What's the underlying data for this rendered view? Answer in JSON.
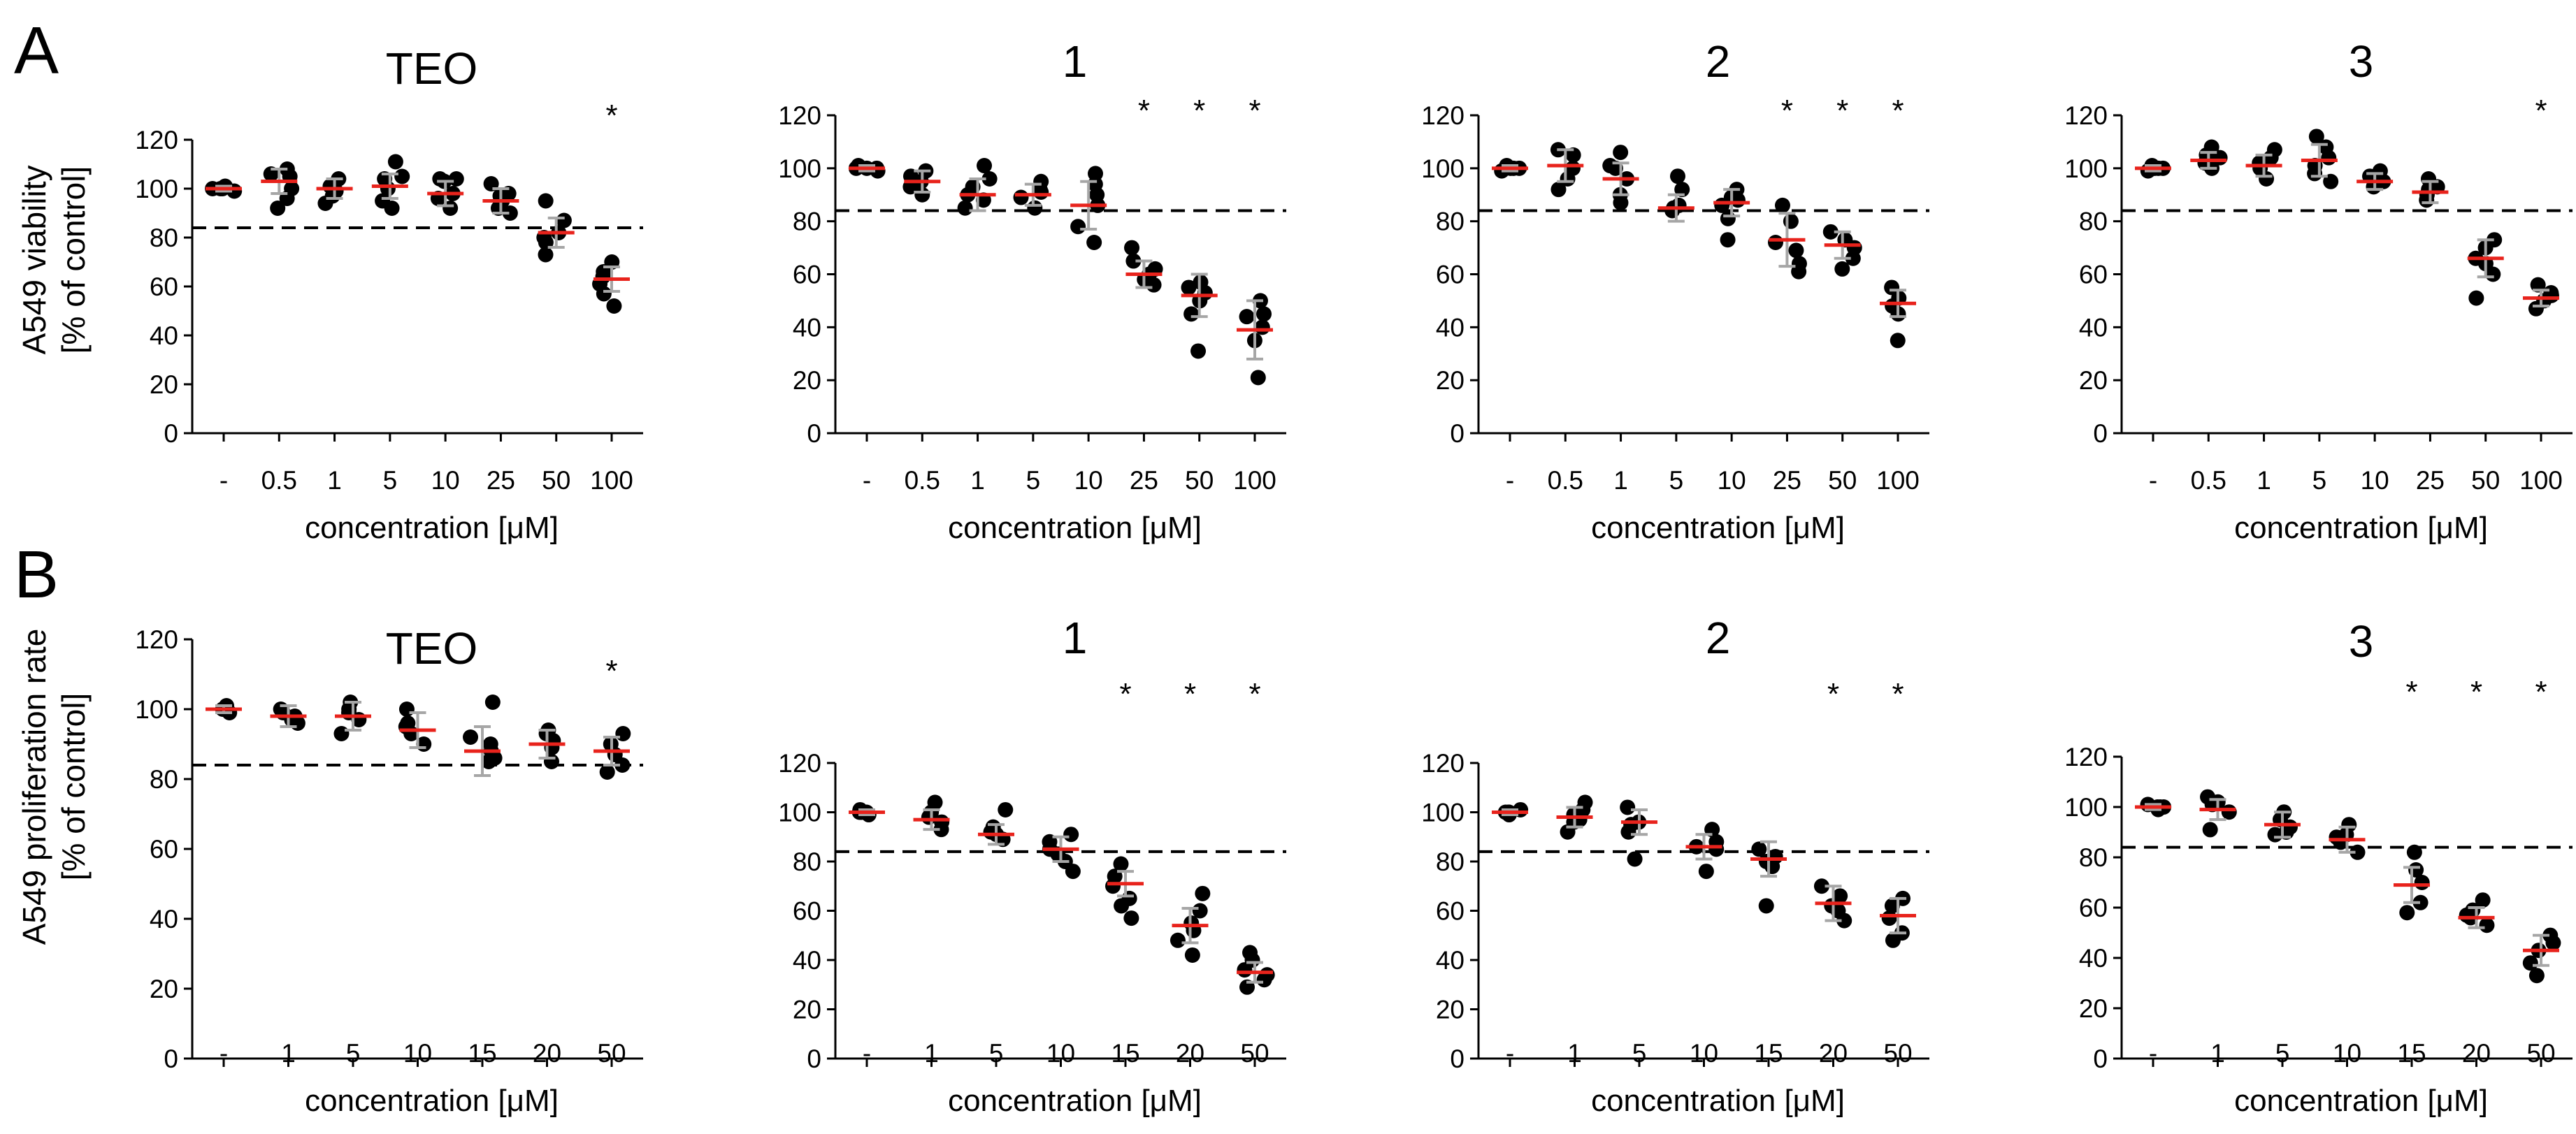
{
  "panel_labels": [
    "A",
    "B"
  ],
  "row_ylabels": [
    [
      "A549 viability",
      "[% of control]"
    ],
    [
      "A549 proliferation rate",
      "[% of control]"
    ]
  ],
  "xlabel": "concentration [μM]",
  "chart_data": [
    {
      "type": "scatter",
      "title": "TEO",
      "categories": [
        "-",
        "0.5",
        "1",
        "5",
        "10",
        "25",
        "50",
        "100"
      ],
      "means": [
        100,
        103,
        100,
        101,
        98,
        95,
        82,
        63
      ],
      "sd": [
        1,
        5,
        4,
        5,
        5,
        5,
        6,
        5
      ],
      "points": [
        [
          99,
          100,
          101,
          100,
          100
        ],
        [
          108,
          106,
          100,
          96,
          92,
          105
        ],
        [
          99,
          104,
          97,
          94,
          101
        ],
        [
          111,
          104,
          100,
          95,
          92,
          105
        ],
        [
          104,
          103,
          96,
          92,
          98,
          104
        ],
        [
          102,
          98,
          95,
          92,
          90,
          97
        ],
        [
          95,
          87,
          80,
          78,
          73,
          82
        ],
        [
          70,
          66,
          61,
          57,
          52,
          64
        ]
      ],
      "significant": [
        false,
        false,
        false,
        false,
        false,
        false,
        false,
        true
      ],
      "threshold": 84,
      "ylim": [
        0,
        120
      ],
      "yticks": [
        0,
        20,
        40,
        60,
        80,
        100,
        120
      ],
      "xlabel": "concentration [μM]"
    },
    {
      "type": "scatter",
      "title": "1",
      "categories": [
        "-",
        "0.5",
        "1",
        "5",
        "10",
        "25",
        "50",
        "100"
      ],
      "means": [
        100,
        95,
        90,
        90,
        86,
        60,
        52,
        39
      ],
      "sd": [
        1,
        4,
        6,
        4,
        9,
        5,
        8,
        11
      ],
      "points": [
        [
          99,
          100,
          101,
          100,
          100
        ],
        [
          99,
          97,
          93,
          90,
          95
        ],
        [
          101,
          96,
          90,
          85,
          88,
          93
        ],
        [
          95,
          92,
          89,
          85,
          91
        ],
        [
          98,
          94,
          86,
          78,
          72,
          90
        ],
        [
          70,
          65,
          60,
          58,
          56,
          62
        ],
        [
          57,
          55,
          50,
          45,
          31,
          53
        ],
        [
          50,
          45,
          40,
          35,
          21,
          44
        ]
      ],
      "significant": [
        false,
        false,
        false,
        false,
        false,
        true,
        true,
        true
      ],
      "threshold": 84,
      "ylim": [
        0,
        120
      ],
      "yticks": [
        0,
        20,
        40,
        60,
        80,
        100,
        120
      ],
      "xlabel": "concentration [μM]"
    },
    {
      "type": "scatter",
      "title": "2",
      "categories": [
        "-",
        "0.5",
        "1",
        "5",
        "10",
        "25",
        "50",
        "100"
      ],
      "means": [
        100,
        101,
        96,
        85,
        87,
        73,
        71,
        49
      ],
      "sd": [
        1,
        6,
        6,
        5,
        5,
        10,
        5,
        5
      ],
      "points": [
        [
          99,
          100,
          101,
          100,
          100
        ],
        [
          107,
          105,
          100,
          96,
          92
        ],
        [
          106,
          100,
          96,
          90,
          87,
          101
        ],
        [
          97,
          92,
          85,
          84,
          86
        ],
        [
          92,
          89,
          86,
          81,
          73,
          88
        ],
        [
          86,
          80,
          72,
          64,
          61,
          69
        ],
        [
          76,
          73,
          70,
          66,
          62
        ],
        [
          55,
          51,
          48,
          45,
          35
        ]
      ],
      "significant": [
        false,
        false,
        false,
        false,
        false,
        true,
        true,
        true
      ],
      "threshold": 84,
      "ylim": [
        0,
        120
      ],
      "yticks": [
        0,
        20,
        40,
        60,
        80,
        100,
        120
      ],
      "xlabel": "concentration [μM]"
    },
    {
      "type": "scatter",
      "title": "3",
      "categories": [
        "-",
        "0.5",
        "1",
        "5",
        "10",
        "25",
        "50",
        "100"
      ],
      "means": [
        100,
        103,
        101,
        103,
        95,
        91,
        66,
        51
      ],
      "sd": [
        1,
        3,
        4,
        6,
        3,
        4,
        7,
        3
      ],
      "points": [
        [
          99,
          100,
          101,
          100,
          100
        ],
        [
          108,
          105,
          102,
          100,
          104
        ],
        [
          107,
          104,
          100,
          96,
          102
        ],
        [
          112,
          108,
          104,
          98,
          95,
          101
        ],
        [
          99,
          97,
          95,
          93,
          94
        ],
        [
          96,
          93,
          90,
          88,
          92
        ],
        [
          73,
          70,
          66,
          60,
          51,
          64
        ],
        [
          56,
          53,
          50,
          47,
          52
        ]
      ],
      "significant": [
        false,
        false,
        false,
        false,
        false,
        false,
        false,
        true
      ],
      "threshold": 84,
      "ylim": [
        0,
        120
      ],
      "yticks": [
        0,
        20,
        40,
        60,
        80,
        100,
        120
      ],
      "xlabel": "concentration [μM]"
    },
    {
      "type": "scatter",
      "title": "TEO",
      "categories": [
        "-",
        "1",
        "5",
        "10",
        "15",
        "20",
        "50"
      ],
      "means": [
        100,
        98,
        98,
        94,
        88,
        90,
        88
      ],
      "sd": [
        1,
        3,
        4,
        5,
        7,
        4,
        4
      ],
      "points": [
        [
          99,
          100,
          101,
          100,
          100
        ],
        [
          100,
          98,
          96,
          99,
          97
        ],
        [
          102,
          100,
          97,
          93,
          99
        ],
        [
          100,
          96,
          93,
          90,
          95
        ],
        [
          102,
          92,
          88,
          85,
          86,
          90
        ],
        [
          94,
          91,
          89,
          85,
          93
        ],
        [
          93,
          90,
          87,
          84,
          82
        ]
      ],
      "significant": [
        false,
        false,
        false,
        false,
        false,
        false,
        true
      ],
      "threshold": 84,
      "ylim": [
        0,
        120
      ],
      "yticks": [
        0,
        20,
        40,
        60,
        80,
        100,
        120
      ],
      "xlabel": "concentration [μM]"
    },
    {
      "type": "scatter",
      "title": "1",
      "categories": [
        "-",
        "1",
        "5",
        "10",
        "15",
        "20",
        "50"
      ],
      "means": [
        100,
        97,
        91,
        85,
        71,
        54,
        35
      ],
      "sd": [
        1,
        4,
        4,
        5,
        5,
        7,
        4
      ],
      "points": [
        [
          99,
          100,
          101,
          100,
          100
        ],
        [
          104,
          100,
          96,
          93,
          98
        ],
        [
          101,
          94,
          91,
          89,
          92
        ],
        [
          91,
          88,
          85,
          80,
          76,
          83
        ],
        [
          79,
          74,
          70,
          65,
          57,
          62
        ],
        [
          67,
          60,
          55,
          48,
          42,
          52
        ],
        [
          43,
          40,
          36,
          32,
          29,
          34
        ]
      ],
      "significant": [
        false,
        false,
        false,
        false,
        true,
        true,
        true
      ],
      "threshold": 84,
      "ylim": [
        0,
        120
      ],
      "yticks": [
        0,
        20,
        40,
        60,
        80,
        100,
        120
      ],
      "xlabel": "concentration [μM]"
    },
    {
      "type": "scatter",
      "title": "2",
      "categories": [
        "-",
        "1",
        "5",
        "10",
        "15",
        "20",
        "50"
      ],
      "means": [
        100,
        98,
        96,
        86,
        81,
        63,
        58
      ],
      "sd": [
        1,
        4,
        5,
        5,
        7,
        7,
        7
      ],
      "points": [
        [
          99,
          100,
          101,
          100,
          100
        ],
        [
          104,
          101,
          97,
          92,
          96,
          99
        ],
        [
          102,
          96,
          92,
          81,
          95
        ],
        [
          93,
          88,
          85,
          76,
          86
        ],
        [
          85,
          82,
          80,
          62,
          78
        ],
        [
          70,
          66,
          62,
          56,
          60
        ],
        [
          65,
          62,
          57,
          51,
          48
        ]
      ],
      "significant": [
        false,
        false,
        false,
        false,
        false,
        true,
        true
      ],
      "threshold": 84,
      "ylim": [
        0,
        120
      ],
      "yticks": [
        0,
        20,
        40,
        60,
        80,
        100,
        120
      ],
      "xlabel": "concentration [μM]"
    },
    {
      "type": "scatter",
      "title": "3",
      "categories": [
        "-",
        "1",
        "5",
        "10",
        "15",
        "20",
        "50"
      ],
      "means": [
        100,
        99,
        93,
        87,
        69,
        56,
        43
      ],
      "sd": [
        1,
        4,
        5,
        5,
        7,
        4,
        6
      ],
      "points": [
        [
          99,
          100,
          101,
          100,
          100
        ],
        [
          104,
          101,
          98,
          91,
          102
        ],
        [
          98,
          95,
          92,
          89,
          90
        ],
        [
          93,
          89,
          86,
          82,
          88
        ],
        [
          82,
          75,
          70,
          62,
          58
        ],
        [
          63,
          59,
          56,
          53,
          57
        ],
        [
          49,
          46,
          43,
          38,
          33
        ]
      ],
      "significant": [
        false,
        false,
        false,
        false,
        true,
        true,
        true
      ],
      "threshold": 84,
      "ylim": [
        0,
        120
      ],
      "yticks": [
        0,
        20,
        40,
        60,
        80,
        100,
        120
      ],
      "xlabel": "concentration [μM]"
    }
  ]
}
